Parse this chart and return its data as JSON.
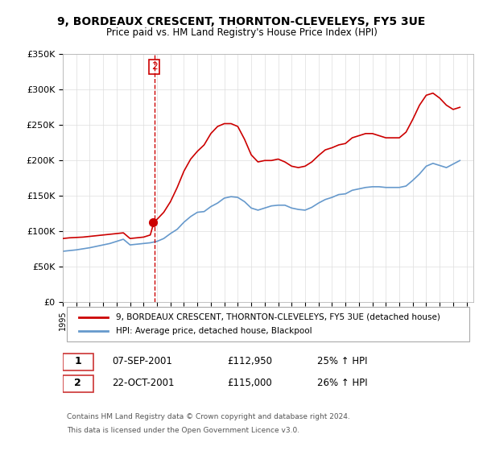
{
  "title": "9, BORDEAUX CRESCENT, THORNTON-CLEVELEYS, FY5 3UE",
  "subtitle": "Price paid vs. HM Land Registry's House Price Index (HPI)",
  "legend_line1": "9, BORDEAUX CRESCENT, THORNTON-CLEVELEYS, FY5 3UE (detached house)",
  "legend_line2": "HPI: Average price, detached house, Blackpool",
  "footer1": "Contains HM Land Registry data © Crown copyright and database right 2024.",
  "footer2": "This data is licensed under the Open Government Licence v3.0.",
  "transactions": [
    {
      "num": 1,
      "date": "07-SEP-2001",
      "price": "£112,950",
      "hpi": "25% ↑ HPI"
    },
    {
      "num": 2,
      "date": "22-OCT-2001",
      "price": "£115,000",
      "hpi": "26% ↑ HPI"
    }
  ],
  "vline_x": 2001.8,
  "marker1_x": 2001.67,
  "marker1_y": 112950,
  "marker2_x": 2001.8,
  "marker2_y": 115000,
  "red_color": "#cc0000",
  "blue_color": "#6699cc",
  "vline_color": "#cc0000",
  "ylim": [
    0,
    350000
  ],
  "xlim": [
    1995.0,
    2025.5
  ],
  "hpi_data_x": [
    1995.0,
    1995.5,
    1996.0,
    1996.5,
    1997.0,
    1997.5,
    1998.0,
    1998.5,
    1999.0,
    1999.5,
    2000.0,
    2000.5,
    2001.0,
    2001.5,
    2002.0,
    2002.5,
    2003.0,
    2003.5,
    2004.0,
    2004.5,
    2005.0,
    2005.5,
    2006.0,
    2006.5,
    2007.0,
    2007.5,
    2008.0,
    2008.5,
    2009.0,
    2009.5,
    2010.0,
    2010.5,
    2011.0,
    2011.5,
    2012.0,
    2012.5,
    2013.0,
    2013.5,
    2014.0,
    2014.5,
    2015.0,
    2015.5,
    2016.0,
    2016.5,
    2017.0,
    2017.5,
    2018.0,
    2018.5,
    2019.0,
    2019.5,
    2020.0,
    2020.5,
    2021.0,
    2021.5,
    2022.0,
    2022.5,
    2023.0,
    2023.5,
    2024.0,
    2024.5
  ],
  "hpi_data_y": [
    72000,
    73000,
    74000,
    75500,
    77000,
    79000,
    81000,
    83000,
    86000,
    89000,
    81000,
    82000,
    83000,
    84000,
    86000,
    90000,
    97000,
    103000,
    113000,
    121000,
    127000,
    128000,
    135000,
    140000,
    147000,
    149000,
    148000,
    142000,
    133000,
    130000,
    133000,
    136000,
    137000,
    137000,
    133000,
    131000,
    130000,
    134000,
    140000,
    145000,
    148000,
    152000,
    153000,
    158000,
    160000,
    162000,
    163000,
    163000,
    162000,
    162000,
    162000,
    164000,
    172000,
    181000,
    192000,
    196000,
    193000,
    190000,
    195000,
    200000
  ],
  "red_data_x": [
    1995.0,
    1995.5,
    1996.0,
    1996.5,
    1997.0,
    1997.5,
    1998.0,
    1998.5,
    1999.0,
    1999.5,
    2000.0,
    2000.5,
    2001.0,
    2001.5,
    2001.8,
    2002.0,
    2002.5,
    2003.0,
    2003.5,
    2004.0,
    2004.5,
    2005.0,
    2005.5,
    2006.0,
    2006.5,
    2007.0,
    2007.5,
    2008.0,
    2008.5,
    2009.0,
    2009.5,
    2010.0,
    2010.5,
    2011.0,
    2011.5,
    2012.0,
    2012.5,
    2013.0,
    2013.5,
    2014.0,
    2014.5,
    2015.0,
    2015.5,
    2016.0,
    2016.5,
    2017.0,
    2017.5,
    2018.0,
    2018.5,
    2019.0,
    2019.5,
    2020.0,
    2020.5,
    2021.0,
    2021.5,
    2022.0,
    2022.5,
    2023.0,
    2023.5,
    2024.0,
    2024.5
  ],
  "red_data_y": [
    90000,
    91000,
    91500,
    92000,
    93000,
    94000,
    95000,
    96000,
    97000,
    98000,
    90000,
    91000,
    92000,
    95000,
    115000,
    117000,
    127000,
    142000,
    162000,
    185000,
    202000,
    213000,
    222000,
    238000,
    248000,
    252000,
    252000,
    248000,
    230000,
    208000,
    198000,
    200000,
    200000,
    202000,
    198000,
    192000,
    190000,
    192000,
    198000,
    207000,
    215000,
    218000,
    222000,
    224000,
    232000,
    235000,
    238000,
    238000,
    235000,
    232000,
    232000,
    232000,
    240000,
    258000,
    278000,
    292000,
    295000,
    288000,
    278000,
    272000,
    275000
  ]
}
